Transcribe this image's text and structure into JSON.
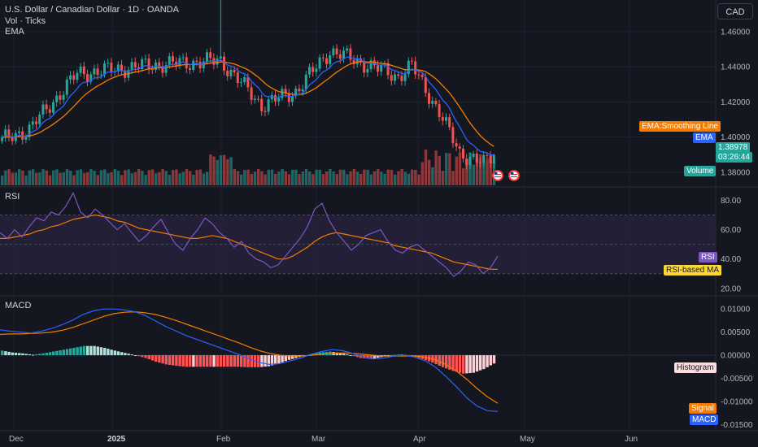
{
  "header": {
    "symbol": "U.S. Dollar / Canadian Dollar · 1D · OANDA",
    "vol_label": "Vol · Ticks",
    "ema_label": "EMA",
    "rsi_label": "RSI",
    "macd_label": "MACD",
    "currency_button": "CAD"
  },
  "tags": {
    "ema_smoothing": "EMA:Smoothing Line",
    "ema": "EMA",
    "price": "1.38978",
    "countdown": "03:26:44",
    "volume": "Volume",
    "rsi": "RSI",
    "rsi_ma": "RSI-based MA",
    "histogram": "Histogram",
    "signal": "Signal",
    "macd": "MACD"
  },
  "colors": {
    "background": "#141720",
    "up": "#26a69a",
    "down": "#ef5350",
    "ema": "#2962ff",
    "ema_smoothing": "#f57c00",
    "rsi": "#7e57c2",
    "rsi_ma": "#fdd835",
    "rsi_band": "#2a2440"
  },
  "chart_data": [
    {
      "type": "candlestick",
      "title": "U.S. Dollar / Canadian Dollar · 1D · OANDA",
      "y_ticks": [
        1.46,
        1.44,
        1.42,
        1.4,
        1.38
      ],
      "ylim": [
        1.3725,
        1.478
      ],
      "x_ticks": [
        "Dec",
        "2025",
        "Feb",
        "Mar",
        "Apr",
        "May",
        "Jun"
      ],
      "last_price": 1.38978,
      "segments": [
        {
          "from": "Dec",
          "close_start": 1.398,
          "close_end": 1.4045
        },
        {
          "from": "mid-Dec",
          "close_start": 1.4045,
          "close_end": 1.436
        },
        {
          "from": "2025",
          "close_start": 1.436,
          "close_end": 1.441
        },
        {
          "from": "Feb",
          "high_spike": 1.4795,
          "close_start": 1.441,
          "close_end": 1.418
        },
        {
          "from": "Mar",
          "close_start": 1.426,
          "close_end": 1.449
        },
        {
          "from": "mid-Mar",
          "close_start": 1.449,
          "close_end": 1.4345
        },
        {
          "from": "Apr",
          "close_start": 1.4405,
          "close_end": 1.385
        },
        {
          "from": "late-Apr",
          "close_start": 1.385,
          "close_end": 1.38978
        }
      ]
    },
    {
      "type": "bar",
      "title": "Vol · Ticks",
      "note": "volume bars, colored by candle direction"
    },
    {
      "type": "line",
      "title": "RSI",
      "y_ticks": [
        80,
        60,
        40,
        20
      ],
      "ylim": [
        16,
        88
      ],
      "bands": [
        30,
        70
      ],
      "series": [
        {
          "name": "RSI",
          "values": [
            58,
            54,
            60,
            55,
            62,
            68,
            66,
            72,
            70,
            76,
            85,
            72,
            68,
            74,
            70,
            65,
            60,
            64,
            58,
            52,
            56,
            62,
            67,
            58,
            50,
            46,
            54,
            60,
            68,
            64,
            58,
            54,
            48,
            52,
            44,
            40,
            38,
            34,
            36,
            42,
            48,
            54,
            62,
            74,
            78,
            66,
            58,
            52,
            46,
            50,
            56,
            58,
            60,
            52,
            46,
            44,
            48,
            50,
            46,
            42,
            38,
            34,
            28,
            32,
            38,
            36,
            30,
            34,
            42
          ]
        },
        {
          "name": "RSI-based MA",
          "values": [
            54,
            54,
            55,
            56,
            57,
            59,
            60,
            62,
            63,
            65,
            67,
            68,
            69,
            70,
            69,
            68,
            66,
            65,
            63,
            61,
            60,
            59,
            58,
            57,
            56,
            55,
            54,
            54,
            55,
            56,
            55,
            54,
            52,
            50,
            48,
            46,
            44,
            42,
            40,
            40,
            42,
            45,
            48,
            52,
            55,
            57,
            58,
            57,
            56,
            55,
            54,
            53,
            52,
            51,
            49,
            48,
            47,
            46,
            45,
            44,
            42,
            40,
            38,
            37,
            36,
            35,
            34,
            33,
            33
          ]
        }
      ]
    },
    {
      "type": "line",
      "title": "MACD",
      "y_ticks": [
        0.01,
        0.005,
        0.0,
        -0.005,
        -0.01,
        -0.015
      ],
      "ylim": [
        -0.016,
        0.0125
      ],
      "series": [
        {
          "name": "MACD",
          "values": [
            0.0055,
            0.0052,
            0.005,
            0.0048,
            0.0052,
            0.0058,
            0.0066,
            0.0076,
            0.0088,
            0.0096,
            0.01,
            0.01,
            0.0098,
            0.0094,
            0.0086,
            0.0074,
            0.0062,
            0.0052,
            0.0042,
            0.0034,
            0.0026,
            0.0018,
            0.001,
            0.0002,
            -0.0008,
            -0.0016,
            -0.002,
            -0.0018,
            -0.0012,
            -0.0006,
            0.0002,
            0.0008,
            0.0012,
            0.001,
            0.0004,
            -0.0004,
            -0.0008,
            -0.0006,
            -0.0002,
            0.0,
            -0.0004,
            -0.0012,
            -0.0026,
            -0.0046,
            -0.0068,
            -0.0092,
            -0.011,
            -0.012,
            -0.0122
          ]
        },
        {
          "name": "Signal",
          "values": [
            0.0045,
            0.0046,
            0.0046,
            0.0047,
            0.0048,
            0.005,
            0.0054,
            0.006,
            0.0068,
            0.0076,
            0.0084,
            0.009,
            0.0093,
            0.0094,
            0.0092,
            0.0088,
            0.0082,
            0.0075,
            0.0067,
            0.0059,
            0.0051,
            0.0043,
            0.0035,
            0.0027,
            0.0018,
            0.001,
            0.0004,
            0.0,
            -0.0002,
            -0.0002,
            0.0,
            0.0002,
            0.0004,
            0.0005,
            0.0004,
            0.0002,
            0.0,
            -0.0002,
            -0.0002,
            -0.0002,
            -0.0002,
            -0.0004,
            -0.001,
            -0.002,
            -0.0034,
            -0.0052,
            -0.0072,
            -0.009,
            -0.0104
          ]
        }
      ]
    }
  ]
}
